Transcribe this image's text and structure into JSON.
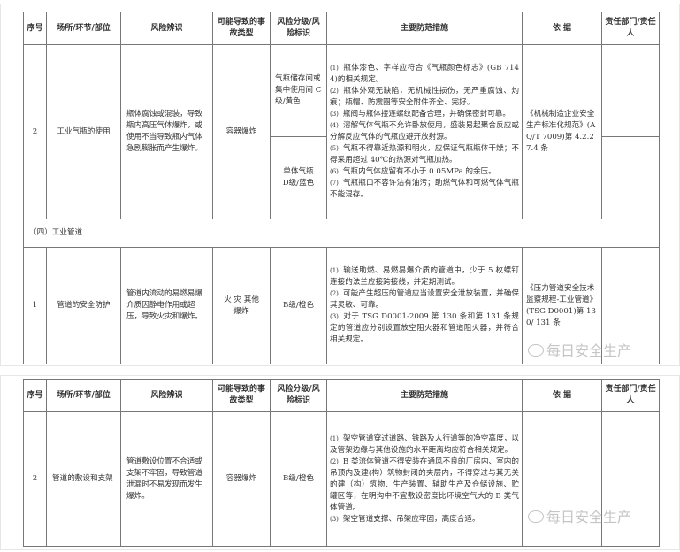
{
  "headers": [
    "序号",
    "场所/环节/部位",
    "风险辨识",
    "可能导致的事故类型",
    "风险分级/风险标识",
    "主要防范措施",
    "依 据",
    "责任部门/责任人"
  ],
  "table1": {
    "row1": {
      "no": "2",
      "place": "工业气瓶的使用",
      "risk": "瓶体腐蚀或混装，导致瓶内高压气体爆炸，或使用不当导致瓶内气体急剧膨胀而产生爆炸。",
      "accident": "容器爆炸",
      "level_a": "气瓶储存间或集中使用间 C级/黄色",
      "level_b": "单体气瓶 D级/蓝色",
      "measures": [
        {
          "n": "(1)",
          "t": "瓶体漆色、字样应符合《气瓶颜色标志》(GB 7144)的相关规定。"
        },
        {
          "n": "(2)",
          "t": "瓶体外观无缺陷，无机械性损伤，无严重腐蚀、灼痕；瓶帽、防震圈等安全附件齐全、完好。"
        },
        {
          "n": "(3)",
          "t": "瓶阀与瓶体接连螺纹配备合理，并确保密封可靠。"
        },
        {
          "n": "(4)",
          "t": "溶解气体气瓶不允许卧放使用，盛装易起聚合反应或分解反应气体的气瓶应避开放射源。"
        },
        {
          "n": "(5)",
          "t": "气瓶不得靠近热源和明火，应保证气瓶瓶体干燥；不得采用超过 40℃的热源对气瓶加热。"
        },
        {
          "n": "(6)",
          "t": "气瓶内气体应留有不小于 0.05MPa 的余压。"
        },
        {
          "n": "(7)",
          "t": "气瓶瓶口不容许沾有油污；助燃气体和可燃气体气瓶不能混存。"
        }
      ],
      "basis": "《机械制造企业安全生产标准化规范》(AQ/T 7009)第 4.2.27.4 条",
      "resp": ""
    },
    "section": "（四）工业管道",
    "row2": {
      "no": "1",
      "place": "管道的安全防护",
      "risk": "管道内流动的易燃易爆介质因静电作用或超压，导致火灾和爆炸。",
      "accident": "火 灾 其他爆炸",
      "level": "B级/橙色",
      "measures": [
        {
          "n": "(1)",
          "t": "输送助燃、易燃易爆介质的管道中，少于 5 枚螺钉连接的法兰应接跨接线，并定期测试。"
        },
        {
          "n": "(2)",
          "t": "可能产生超压的管道应当设置安全泄放装置，并确保其灵敏、可靠。"
        },
        {
          "n": "(3)",
          "t": "对于 TSG D0001-2009 第 130 条和第 131 条规定的管道应分别设置放空阻火器和管道阻火器，并符合相关规定。"
        }
      ],
      "basis": "《压力管道安全技术监察规程-工业管道》(TSG D0001)第 130/ 131 条",
      "resp": ""
    }
  },
  "table2": {
    "row1": {
      "no": "2",
      "place": "管道的敷设和支架",
      "risk": "管道敷设位置不合适或支架不牢固，导致管道泄漏时不易发现而发生爆炸。",
      "accident": "容器爆炸",
      "level": "B级/橙色",
      "measures": [
        {
          "n": "(1)",
          "t": "架空管道穿过道路、铁路及人行道等的净空高度，以及管架边缘与其他设施的水平距离均应符合相关规定。"
        },
        {
          "n": "(2)",
          "t": "B 类流体管道不得安装在通风不良的厂房内、室内的吊顶内及建(构）筑物封闭的夹层内，不得穿过与其无关的建（构）筑物、生产装置、辅助生产及仓储设施、贮罐区等，在明沟中不宜敷设密度比环境空气大的 B 类气体管道。"
        },
        {
          "n": "(3)",
          "t": "架空管道支撑、吊架应牢固，高度合适。"
        }
      ],
      "basis": "",
      "resp": ""
    }
  },
  "watermark": "每日安全生产"
}
